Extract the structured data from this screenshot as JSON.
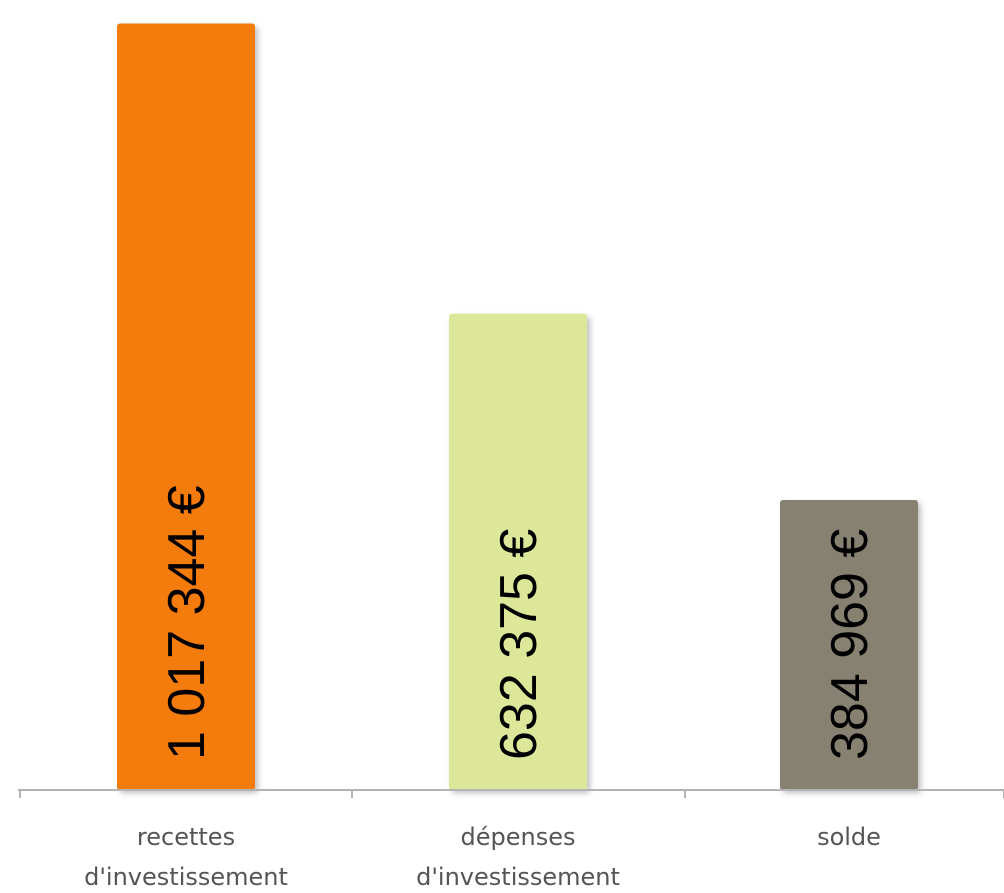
{
  "chart_data": {
    "type": "bar",
    "categories": [
      [
        "recettes",
        "d'investissement"
      ],
      [
        "dépenses",
        "d'investissement"
      ],
      [
        "solde"
      ]
    ],
    "values": [
      1017344,
      632375,
      384969
    ],
    "value_labels": [
      "1 017 344 €",
      "632 375 €",
      "384 969 €"
    ],
    "colors": [
      "#f47c0c",
      "#dde79a",
      "#878172"
    ],
    "title": "",
    "xlabel": "",
    "ylabel": "",
    "ylim": [
      0,
      1030000
    ],
    "grid": false
  }
}
